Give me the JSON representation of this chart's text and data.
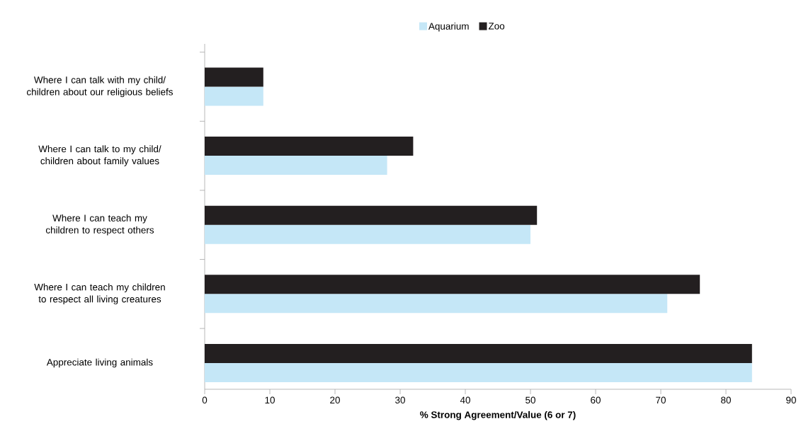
{
  "chart_data": {
    "type": "bar",
    "orientation": "horizontal",
    "xlabel": "% Strong Agreement/Value (6 or 7)",
    "categories": [
      "Where I can talk with my child/ children about our religious beliefs",
      "Where I can talk to my child/ children about family values",
      "Where I can teach my children to respect others",
      "Where I can teach my children to respect all living creatures",
      "Appreciate living animals"
    ],
    "series": [
      {
        "name": "Aquarium",
        "color": "#c5e7f7",
        "values": [
          9,
          28,
          50,
          71,
          84
        ]
      },
      {
        "name": "Zoo",
        "color": "#231f20",
        "values": [
          9,
          32,
          51,
          76,
          84
        ]
      }
    ],
    "xlim": [
      0,
      90
    ],
    "xticks": [
      0,
      10,
      20,
      30,
      40,
      50,
      60,
      70,
      80,
      90
    ],
    "grid": false,
    "legend": "top"
  }
}
